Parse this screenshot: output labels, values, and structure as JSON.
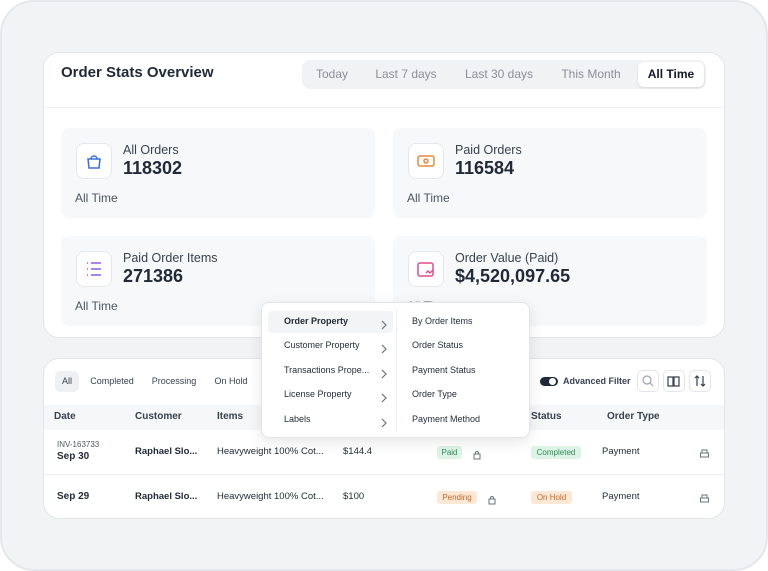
{
  "header": {
    "title": "Order Stats Overview",
    "tabs": [
      "Today",
      "Last 7 days",
      "Last 30 days",
      "This Month",
      "All Time"
    ]
  },
  "stats": [
    {
      "label": "All Orders",
      "value": 118302,
      "period": "All Time"
    },
    {
      "label": "Paid Orders",
      "value": 116584,
      "period": "All Time"
    },
    {
      "label": "Paid Order Items",
      "value": 271386,
      "period": "All Time"
    },
    {
      "label": "Order Value (Paid)",
      "value": "$4,520,097.65",
      "period": "All Time"
    }
  ],
  "filters": {
    "tabs": [
      "All",
      "Completed",
      "Processing",
      "On Hold"
    ],
    "advanced_filter": "Advanced Filter"
  },
  "table": {
    "columns": [
      "Date",
      "Customer",
      "Items",
      "Status",
      "Order Type"
    ],
    "rows": [
      {
        "invoice": "INV-163733",
        "date": "Sep 30",
        "customer": "Raphael Slo...",
        "items": "Heavyweight 100% Cot...",
        "total": "$144.4",
        "payment": "Paid",
        "status": "Completed",
        "type": "Payment"
      },
      {
        "date": "Sep 29",
        "customer": "Raphael Slo...",
        "items": "Heavyweight 100% Cot...",
        "total": "$100",
        "payment": "Pending",
        "status": "On Hold",
        "type": "Payment"
      }
    ]
  },
  "dropdown": {
    "groups": [
      "Order Property",
      "Customer Property",
      "Transactions Prope...",
      "License Property",
      "Labels"
    ],
    "options": [
      "By Order Items",
      "Order Status",
      "Payment Status",
      "Order Type",
      "Payment Method"
    ]
  }
}
